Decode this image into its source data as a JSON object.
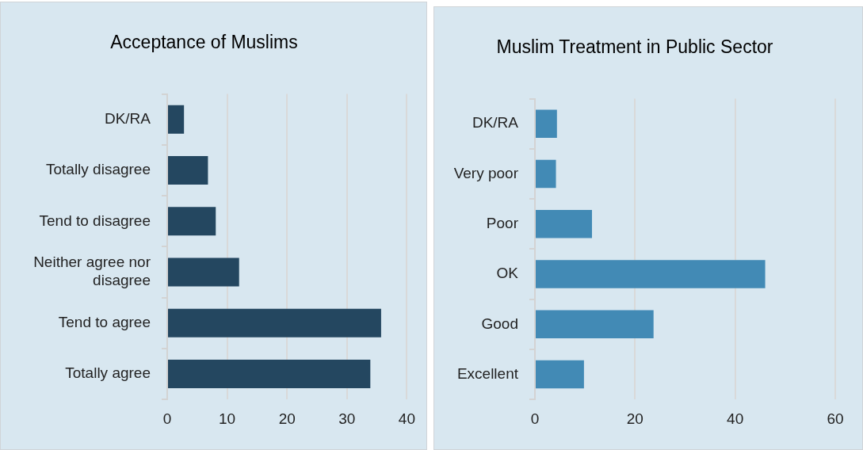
{
  "chart_data": [
    {
      "type": "bar",
      "orientation": "horizontal",
      "title": "Acceptance of Muslims",
      "categories": [
        "DK/RA",
        "Totally disagree",
        "Tend to disagree",
        "Neither agree nor disagree",
        "Tend to agree",
        "Totally agree"
      ],
      "values": [
        2.8,
        6.8,
        8.1,
        12.0,
        35.7,
        33.9
      ],
      "color": "#244760",
      "xlim": [
        0,
        40
      ],
      "xticks": [
        0,
        10,
        20,
        30,
        40
      ],
      "grid": "x"
    },
    {
      "type": "bar",
      "orientation": "horizontal",
      "title": "Muslim Treatment in Public Sector",
      "categories": [
        "DK/RA",
        "Very poor",
        "Poor",
        "OK",
        "Good",
        "Excellent"
      ],
      "values": [
        4.4,
        4.2,
        11.4,
        46.0,
        23.7,
        9.8
      ],
      "color": "#428ab5",
      "xlim": [
        0,
        60
      ],
      "xticks": [
        0,
        20,
        40,
        60
      ],
      "grid": "x"
    }
  ]
}
